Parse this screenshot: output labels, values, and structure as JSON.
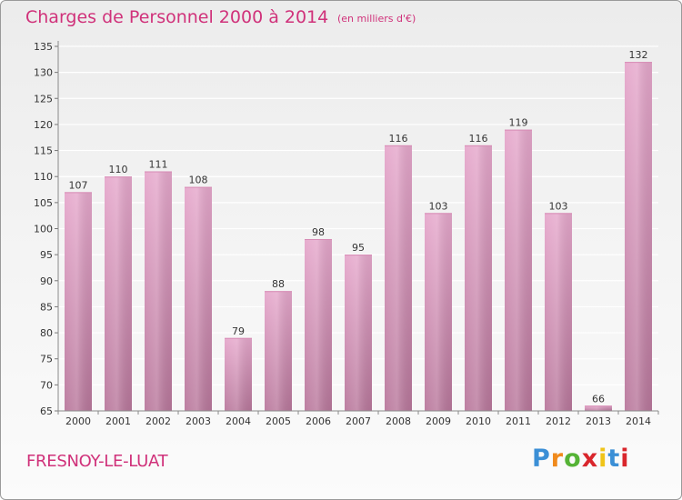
{
  "header": {
    "title": "Charges de Personnel 2000 à 2014",
    "subtitle": "(en milliers d'€)"
  },
  "footer": {
    "location": "FRESNOY-LE-LUAT",
    "brand_letters": [
      "P",
      "r",
      "o",
      "x",
      "i",
      "t",
      "i"
    ],
    "brand_colors": [
      "#3b8fd6",
      "#f08a1c",
      "#55b336",
      "#d9262c",
      "#f0c419",
      "#3b8fd6",
      "#d9262c"
    ]
  },
  "colors": {
    "bar_top": "#e6a8cc",
    "bar_bottom": "#b9789c",
    "title": "#d0317a",
    "grid": "#ffffff"
  },
  "chart_data": {
    "type": "bar",
    "title": "Charges de Personnel 2000 à 2014",
    "subtitle": "(en milliers d'€)",
    "categories": [
      "2000",
      "2001",
      "2002",
      "2003",
      "2004",
      "2005",
      "2006",
      "2007",
      "2008",
      "2009",
      "2010",
      "2011",
      "2012",
      "2013",
      "2014"
    ],
    "values": [
      107,
      110,
      111,
      108,
      79,
      88,
      98,
      95,
      116,
      103,
      116,
      119,
      103,
      66,
      132
    ],
    "ylim": [
      65,
      135
    ],
    "yticks": [
      65,
      70,
      75,
      80,
      85,
      90,
      95,
      100,
      105,
      110,
      115,
      120,
      125,
      130,
      135
    ],
    "grid": true,
    "xlabel": "",
    "ylabel": ""
  }
}
